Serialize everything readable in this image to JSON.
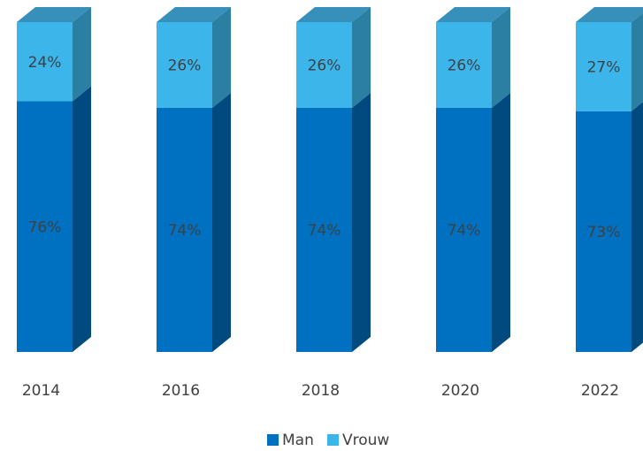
{
  "chart_data": {
    "type": "bar",
    "stacked": true,
    "style": "3d-column",
    "categories": [
      "2014",
      "2016",
      "2018",
      "2020",
      "2022"
    ],
    "series": [
      {
        "name": "Man",
        "values": [
          76,
          74,
          74,
          74,
          73
        ],
        "color": "#0070C0",
        "side_color": "#004A7F",
        "top_color": "#1F80BF"
      },
      {
        "name": "Vrouw",
        "values": [
          24,
          26,
          26,
          26,
          27
        ],
        "color": "#3CB5EB",
        "side_color": "#2A7FA3",
        "top_color": "#3690B9"
      }
    ],
    "data_labels": [
      [
        "76%",
        "74%",
        "74%",
        "74%",
        "73%"
      ],
      [
        "24%",
        "26%",
        "26%",
        "26%",
        "27%"
      ]
    ],
    "unit": "%",
    "ylim": [
      0,
      100
    ],
    "grid": false,
    "legend_position": "bottom",
    "title": "",
    "xlabel": "",
    "ylabel": ""
  }
}
